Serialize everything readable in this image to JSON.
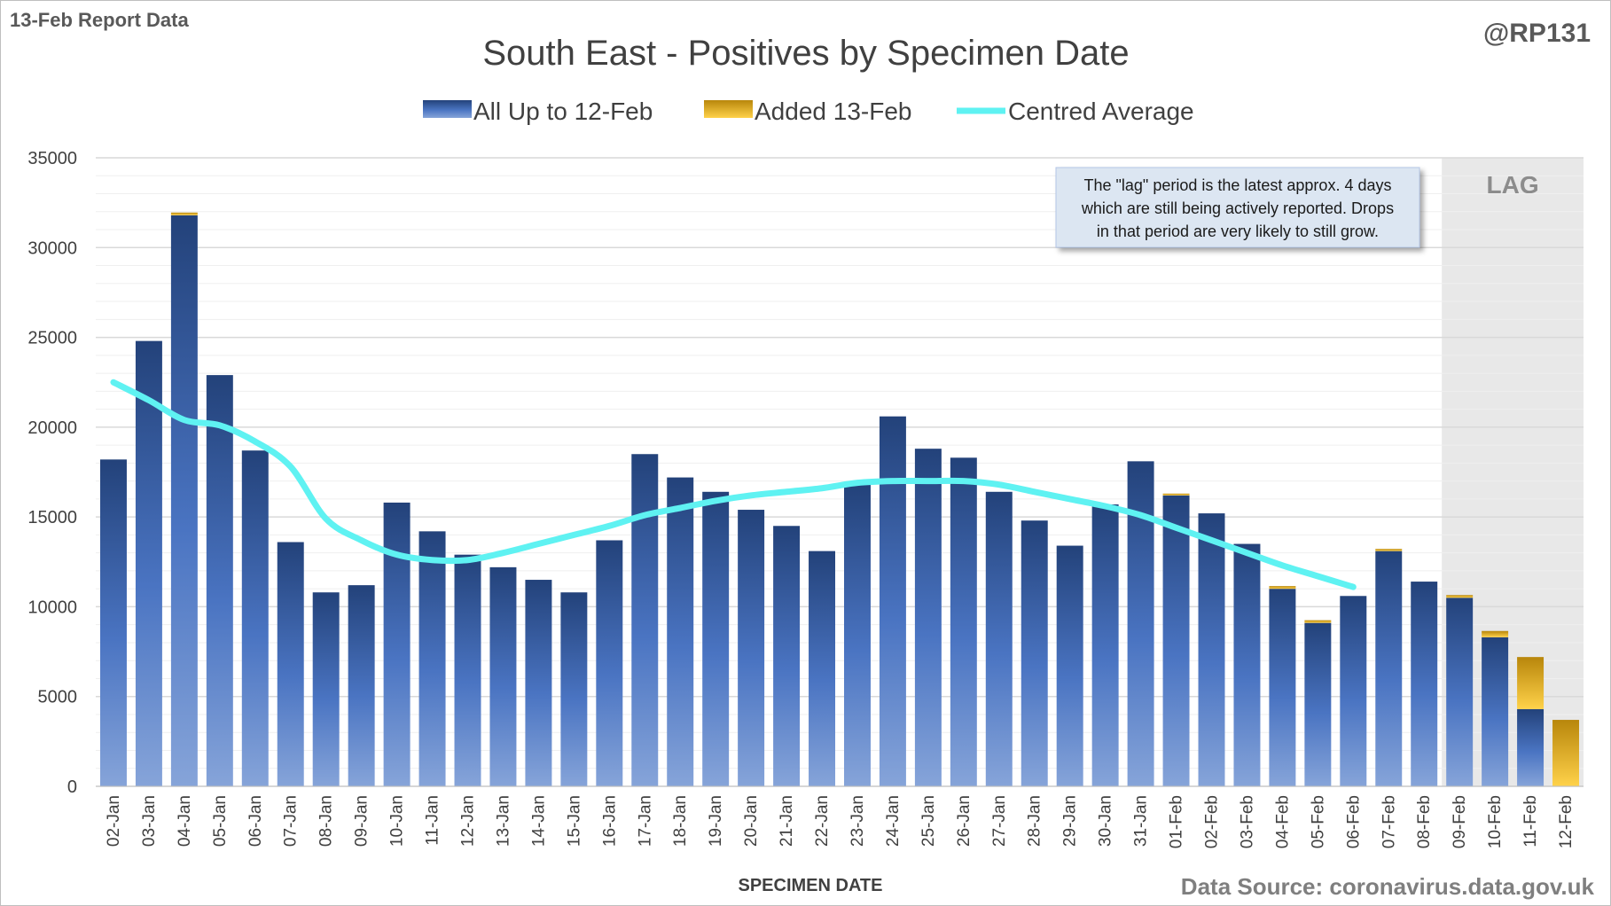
{
  "header": {
    "report_label": "13-Feb Report Data",
    "author_handle": "@RP131"
  },
  "footer": {
    "source": "Data Source: coronavirus.data.gov.uk"
  },
  "annotation": {
    "lag_label": "LAG",
    "lag_note_lines": [
      "The \"lag\" period is the latest approx. 4 days",
      "which are still being actively reported.  Drops",
      "in that period are very likely to still grow."
    ]
  },
  "colors": {
    "base_bar_top": "#23427a",
    "base_bar_bottom": "#86a4d9",
    "added_bar_top": "#b8860b",
    "added_bar_bottom": "#ffd24a",
    "average_line": "#5ff2f2",
    "lag_shade": "#e8e8e8",
    "grid": "#d9d9d9"
  },
  "chart_data": {
    "type": "bar",
    "stacked": true,
    "title": "South East - Positives by Specimen Date",
    "xlabel": "SPECIMEN DATE",
    "ylabel": "",
    "ylim": [
      0,
      35000
    ],
    "yticks": [
      0,
      5000,
      10000,
      15000,
      20000,
      25000,
      30000,
      35000
    ],
    "grid": true,
    "legend_position": "top",
    "lag_categories": [
      "09-Feb",
      "10-Feb",
      "11-Feb",
      "12-Feb"
    ],
    "categories": [
      "02-Jan",
      "03-Jan",
      "04-Jan",
      "05-Jan",
      "06-Jan",
      "07-Jan",
      "08-Jan",
      "09-Jan",
      "10-Jan",
      "11-Jan",
      "12-Jan",
      "13-Jan",
      "14-Jan",
      "15-Jan",
      "16-Jan",
      "17-Jan",
      "18-Jan",
      "19-Jan",
      "20-Jan",
      "21-Jan",
      "22-Jan",
      "23-Jan",
      "24-Jan",
      "25-Jan",
      "26-Jan",
      "27-Jan",
      "28-Jan",
      "29-Jan",
      "30-Jan",
      "31-Jan",
      "01-Feb",
      "02-Feb",
      "03-Feb",
      "04-Feb",
      "05-Feb",
      "06-Feb",
      "07-Feb",
      "08-Feb",
      "09-Feb",
      "10-Feb",
      "11-Feb",
      "12-Feb"
    ],
    "series": [
      {
        "name": "All Up to 12-Feb",
        "type": "bar",
        "values": [
          18200,
          24800,
          31800,
          22900,
          18700,
          13600,
          10800,
          11200,
          15800,
          14200,
          12900,
          12200,
          11500,
          10800,
          13700,
          18500,
          17200,
          16400,
          15400,
          14500,
          13100,
          16800,
          20600,
          18800,
          18300,
          16400,
          14800,
          13400,
          15700,
          18100,
          16200,
          15200,
          13500,
          11000,
          9100,
          10600,
          13100,
          11400,
          10500,
          8300,
          4300,
          0
        ]
      },
      {
        "name": "Added 13-Feb",
        "type": "bar",
        "values": [
          0,
          0,
          150,
          0,
          0,
          0,
          0,
          0,
          0,
          0,
          0,
          0,
          0,
          0,
          0,
          0,
          0,
          0,
          0,
          0,
          0,
          0,
          0,
          0,
          0,
          0,
          0,
          0,
          0,
          0,
          100,
          0,
          0,
          150,
          150,
          0,
          120,
          0,
          150,
          350,
          2900,
          3700
        ]
      },
      {
        "name": "Centred Average",
        "type": "line",
        "values": [
          22500,
          21500,
          20400,
          20100,
          19200,
          17800,
          14900,
          13700,
          12900,
          12600,
          12600,
          13000,
          13500,
          14000,
          14500,
          15100,
          15500,
          15900,
          16200,
          16400,
          16600,
          16900,
          17000,
          17000,
          17000,
          16800,
          16400,
          16000,
          15600,
          15100,
          14400,
          13700,
          13000,
          12300,
          11700,
          11100,
          null,
          null,
          null,
          null,
          null,
          null
        ]
      }
    ]
  }
}
